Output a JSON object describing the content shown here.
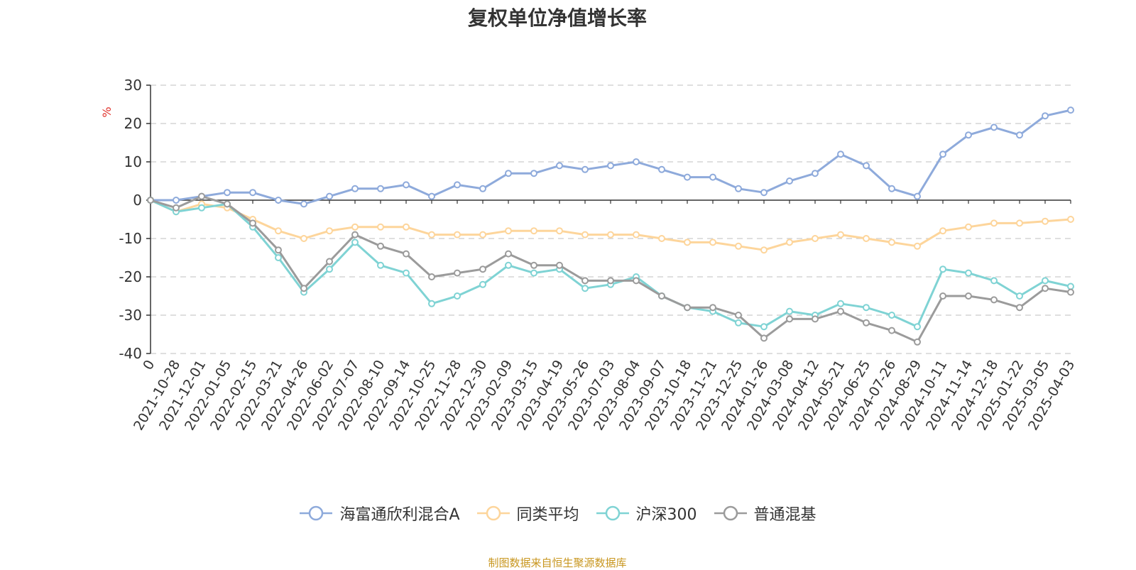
{
  "chart_data": {
    "type": "line",
    "title": "复权单位净值增长率",
    "ylabel": "%",
    "xlabel": "",
    "ylim": [
      -40,
      30
    ],
    "yticks": [
      30,
      20,
      10,
      0,
      -10,
      -20,
      -30,
      -40
    ],
    "grid": true,
    "legend_position": "bottom",
    "categories": [
      "0",
      "2021-10-28",
      "2021-12-01",
      "2022-01-05",
      "2022-02-15",
      "2022-03-21",
      "2022-04-26",
      "2022-06-02",
      "2022-07-07",
      "2022-08-10",
      "2022-09-14",
      "2022-10-25",
      "2022-11-28",
      "2022-12-30",
      "2023-02-09",
      "2023-03-15",
      "2023-04-19",
      "2023-05-26",
      "2023-07-03",
      "2023-08-04",
      "2023-09-07",
      "2023-10-18",
      "2023-11-21",
      "2023-12-25",
      "2024-01-26",
      "2024-03-08",
      "2024-04-12",
      "2024-05-21",
      "2024-06-25",
      "2024-07-26",
      "2024-08-29",
      "2024-10-11",
      "2024-11-14",
      "2024-12-18",
      "2025-01-22",
      "2025-03-05",
      "2025-04-03"
    ],
    "series": [
      {
        "name": "海富通欣利混合A",
        "color": "#8eaadb",
        "values": [
          0,
          0,
          1,
          2,
          2,
          0,
          -1,
          1,
          3,
          3,
          4,
          1,
          4,
          3,
          7,
          7,
          9,
          8,
          9,
          10,
          8,
          6,
          6,
          3,
          2,
          5,
          7,
          12,
          9,
          3,
          1,
          12,
          17,
          19,
          17,
          22,
          23.5
        ]
      },
      {
        "name": "同类平均",
        "color": "#fdd59b",
        "values": [
          0,
          -3,
          -1,
          -2,
          -5,
          -8,
          -10,
          -8,
          -7,
          -7,
          -7,
          -9,
          -9,
          -9,
          -8,
          -8,
          -8,
          -9,
          -9,
          -9,
          -10,
          -11,
          -11,
          -12,
          -13,
          -11,
          -10,
          -9,
          -10,
          -11,
          -12,
          -8,
          -7,
          -6,
          -6,
          -5.5,
          -5
        ]
      },
      {
        "name": "沪深300",
        "color": "#7fd3d4",
        "values": [
          0,
          -3,
          -2,
          -1,
          -7,
          -15,
          -24,
          -18,
          -11,
          -17,
          -19,
          -27,
          -25,
          -22,
          -17,
          -19,
          -18,
          -23,
          -22,
          -20,
          -25,
          -28,
          -29,
          -32,
          -33,
          -29,
          -30,
          -27,
          -28,
          -30,
          -33,
          -18,
          -19,
          -21,
          -25,
          -21,
          -22.5
        ]
      },
      {
        "name": "普通混基",
        "color": "#9b9b9b",
        "values": [
          0,
          -2,
          1,
          -1,
          -6,
          -13,
          -23,
          -16,
          -9,
          -12,
          -14,
          -20,
          -19,
          -18,
          -14,
          -17,
          -17,
          -21,
          -21,
          -21,
          -25,
          -28,
          -28,
          -30,
          -36,
          -31,
          -31,
          -29,
          -32,
          -34,
          -37,
          -25,
          -25,
          -26,
          -28,
          -23,
          -24
        ]
      }
    ],
    "source": "制图数据来自恒生聚源数据库"
  }
}
